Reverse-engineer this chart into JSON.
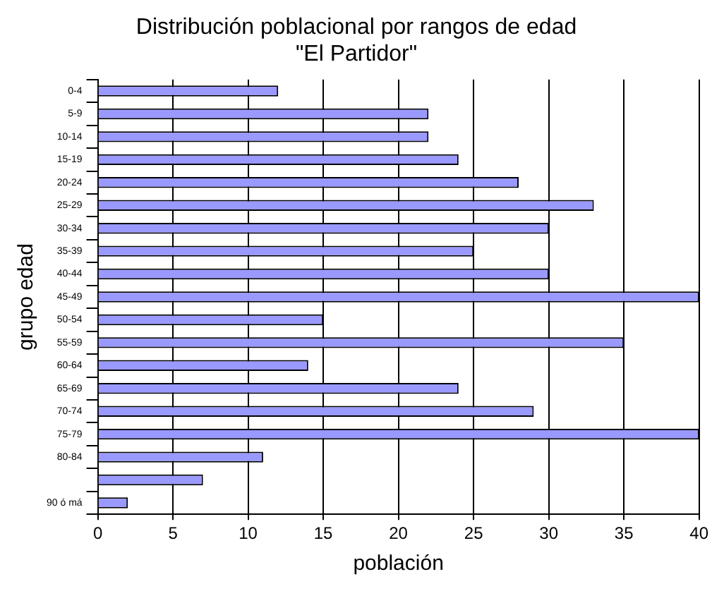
{
  "chart_data": {
    "type": "bar",
    "orientation": "horizontal",
    "title": "Distribución poblacional por rangos de edad\n\"El Partidor\"",
    "xlabel": "población",
    "ylabel": "grupo edad",
    "categories": [
      "0-4",
      "5-9",
      "10-14",
      "15-19",
      "20-24",
      "25-29",
      "30-34",
      "35-39",
      "40-44",
      "45-49",
      "50-54",
      "55-59",
      "60-64",
      "65-69",
      "70-74",
      "75-79",
      "80-84",
      null,
      "90 ó má"
    ],
    "values": [
      12,
      22,
      22,
      24,
      28,
      33,
      30,
      25,
      30,
      40,
      15,
      35,
      14,
      24,
      29,
      40,
      11,
      7,
      2
    ],
    "color": "#9999ff",
    "xlim": [
      0,
      40
    ],
    "xticks": [
      0,
      5,
      10,
      15,
      20,
      25,
      30,
      35,
      40
    ],
    "grid": "x",
    "legend": false
  }
}
